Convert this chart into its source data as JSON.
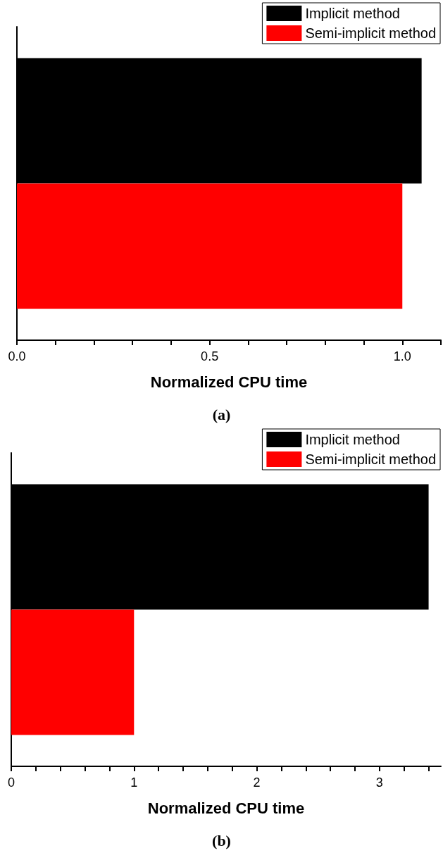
{
  "chart_data": [
    {
      "type": "bar",
      "orientation": "horizontal",
      "categories": [
        null
      ],
      "xlabel": "Normalized CPU time",
      "annotations": [
        "(a)"
      ],
      "legend": "top right",
      "grid": false,
      "xlim": [
        0,
        1.1
      ],
      "xticks": [
        {
          "value": 0,
          "label": "0.0"
        },
        {
          "value": 0.1,
          "label": null
        },
        {
          "value": 0.2,
          "label": null
        },
        {
          "value": 0.3,
          "label": null
        },
        {
          "value": 0.4,
          "label": null
        },
        0.5,
        {
          "value": 0.6,
          "label": null
        },
        {
          "value": 0.7,
          "label": null
        },
        {
          "value": 0.8,
          "label": null
        },
        {
          "value": 0.9,
          "label": null
        },
        {
          "value": 1,
          "label": "1.0"
        },
        {
          "value": 1.1,
          "label": null
        }
      ],
      "series": [
        {
          "name": "Implicit method",
          "color": "#000000",
          "values": [
            1.05
          ]
        },
        {
          "name": "Semi-implicit method",
          "color": "#ff0000",
          "values": [
            1.0
          ]
        }
      ]
    },
    {
      "type": "bar",
      "orientation": "horizontal",
      "categories": [
        null
      ],
      "xlabel": "Normalized CPU time",
      "annotations": [
        "(b)"
      ],
      "legend": "top right",
      "grid": false,
      "xlim": [
        0,
        3.5
      ],
      "xticks": [
        0,
        {
          "value": 0.2,
          "label": null
        },
        {
          "value": 0.4,
          "label": null
        },
        {
          "value": 0.6,
          "label": null
        },
        {
          "value": 0.8,
          "label": null
        },
        1,
        {
          "value": 1.2,
          "label": null
        },
        {
          "value": 1.4,
          "label": null
        },
        {
          "value": 1.6,
          "label": null
        },
        {
          "value": 1.8,
          "label": null
        },
        2,
        {
          "value": 2.2,
          "label": null
        },
        {
          "value": 2.4,
          "label": null
        },
        {
          "value": 2.6,
          "label": null
        },
        {
          "value": 2.8,
          "label": null
        },
        3,
        {
          "value": 3.2,
          "label": null
        },
        {
          "value": 3.4,
          "label": null
        }
      ],
      "series": [
        {
          "name": "Implicit method",
          "color": "#000000",
          "values": [
            3.4
          ]
        },
        {
          "name": "Semi-implicit method",
          "color": "#ff0000",
          "values": [
            1.0
          ]
        }
      ]
    }
  ]
}
